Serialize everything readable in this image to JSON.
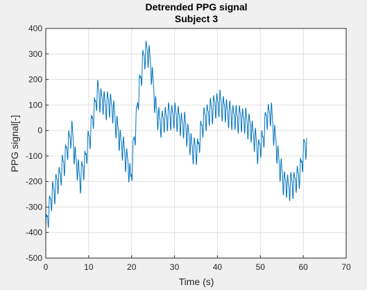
{
  "chart_data": {
    "type": "line",
    "title": "Detrended PPG signal",
    "subtitle": "Subject 3",
    "xlabel": "Time (s)",
    "ylabel": "PPG signal[-]",
    "xlim": [
      0,
      70
    ],
    "ylim": [
      -500,
      400
    ],
    "xticks": [
      0,
      10,
      20,
      30,
      40,
      50,
      60,
      70
    ],
    "yticks": [
      -500,
      -400,
      -300,
      -200,
      -100,
      0,
      100,
      200,
      300,
      400
    ],
    "grid": true,
    "series": [
      {
        "color": "#0072bd",
        "envelope": [
          [
            0,
            -390
          ],
          [
            1,
            -280
          ],
          [
            2,
            -230
          ],
          [
            3,
            -190
          ],
          [
            4,
            -140
          ],
          [
            5,
            -70
          ],
          [
            6,
            0
          ],
          [
            7,
            -120
          ],
          [
            8,
            -190
          ],
          [
            9,
            -130
          ],
          [
            10,
            -40
          ],
          [
            11,
            50
          ],
          [
            12,
            150
          ],
          [
            13,
            120
          ],
          [
            14,
            100
          ],
          [
            15,
            110
          ],
          [
            16,
            60
          ],
          [
            17,
            -20
          ],
          [
            18,
            -70
          ],
          [
            19,
            -120
          ],
          [
            19.8,
            -190
          ],
          [
            20.5,
            -60
          ],
          [
            21.5,
            120
          ],
          [
            22.5,
            260
          ],
          [
            23.5,
            320
          ],
          [
            24.5,
            260
          ],
          [
            25.5,
            100
          ],
          [
            26.5,
            30
          ],
          [
            27.5,
            40
          ],
          [
            28.5,
            60
          ],
          [
            29.5,
            60
          ],
          [
            30.5,
            60
          ],
          [
            31.5,
            30
          ],
          [
            32.5,
            20
          ],
          [
            33.5,
            -40
          ],
          [
            34.5,
            -80
          ],
          [
            35.5,
            -70
          ],
          [
            36.5,
            30
          ],
          [
            37.5,
            60
          ],
          [
            38.5,
            80
          ],
          [
            39.5,
            100
          ],
          [
            40.5,
            110
          ],
          [
            41.5,
            90
          ],
          [
            42.5,
            70
          ],
          [
            43.5,
            60
          ],
          [
            44.5,
            50
          ],
          [
            45.5,
            50
          ],
          [
            46.5,
            40
          ],
          [
            47.5,
            20
          ],
          [
            48.5,
            -20
          ],
          [
            49.5,
            -80
          ],
          [
            50.5,
            -40
          ],
          [
            51.5,
            60
          ],
          [
            52.5,
            70
          ],
          [
            53.5,
            -40
          ],
          [
            54.5,
            -140
          ],
          [
            55.5,
            -200
          ],
          [
            56.5,
            -220
          ],
          [
            57.5,
            -210
          ],
          [
            58.5,
            -190
          ],
          [
            59.5,
            -150
          ],
          [
            60.3,
            -50
          ],
          [
            60.8,
            -70
          ]
        ],
        "oscillation": {
          "period_s": 0.75,
          "amplitude": 50
        }
      }
    ]
  }
}
